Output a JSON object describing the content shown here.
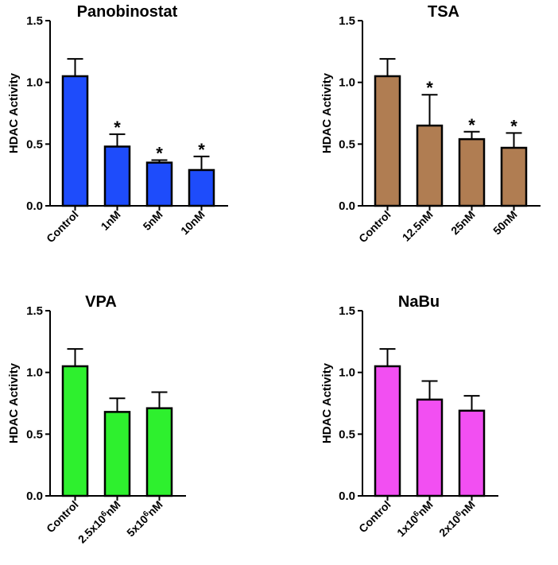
{
  "chart_data": [
    {
      "type": "bar",
      "title": "Panobinostat",
      "xlabel": "",
      "ylabel": "HDAC Activity",
      "ylim": [
        0,
        1.5
      ],
      "yticks": [
        "0.0",
        "0.5",
        "1.0",
        "1.5"
      ],
      "bar_color": "#1e4cfb",
      "categories": [
        {
          "label": "Control",
          "base": "Control",
          "sup": "",
          "unit": ""
        },
        {
          "label": "1nM",
          "base": "1nM",
          "sup": "",
          "unit": ""
        },
        {
          "label": "5nM",
          "base": "5nM",
          "sup": "",
          "unit": ""
        },
        {
          "label": "10nM",
          "base": "10nM",
          "sup": "",
          "unit": ""
        }
      ],
      "values": [
        1.05,
        0.48,
        0.35,
        0.29
      ],
      "errors": [
        0.14,
        0.1,
        0.02,
        0.11
      ],
      "significance": [
        "",
        "*",
        "*",
        "*"
      ]
    },
    {
      "type": "bar",
      "title": "TSA",
      "xlabel": "",
      "ylabel": "HDAC Activity",
      "ylim": [
        0,
        1.5
      ],
      "yticks": [
        "0.0",
        "0.5",
        "1.0",
        "1.5"
      ],
      "bar_color": "#b07d52",
      "categories": [
        {
          "label": "Control",
          "base": "Control",
          "sup": "",
          "unit": ""
        },
        {
          "label": "12.5nM",
          "base": "12.5nM",
          "sup": "",
          "unit": ""
        },
        {
          "label": "25nM",
          "base": "25nM",
          "sup": "",
          "unit": ""
        },
        {
          "label": "50nM",
          "base": "50nM",
          "sup": "",
          "unit": ""
        }
      ],
      "values": [
        1.05,
        0.65,
        0.54,
        0.47
      ],
      "errors": [
        0.14,
        0.25,
        0.06,
        0.12
      ],
      "significance": [
        "",
        "*",
        "*",
        "*"
      ]
    },
    {
      "type": "bar",
      "title": "VPA",
      "xlabel": "",
      "ylabel": "HDAC Activity",
      "ylim": [
        0,
        1.5
      ],
      "yticks": [
        "0.0",
        "0.5",
        "1.0",
        "1.5"
      ],
      "bar_color": "#2ef02e",
      "categories": [
        {
          "label": "Control",
          "base": "Control",
          "sup": "",
          "unit": ""
        },
        {
          "label": "2.5x10⁶nM",
          "base": "2.5x10",
          "sup": "6",
          "unit": "nM"
        },
        {
          "label": "5x10⁶nM",
          "base": "5x10",
          "sup": "6",
          "unit": "nM"
        }
      ],
      "values": [
        1.05,
        0.68,
        0.71
      ],
      "errors": [
        0.14,
        0.11,
        0.13
      ],
      "significance": [
        "",
        "",
        ""
      ]
    },
    {
      "type": "bar",
      "title": "NaBu",
      "xlabel": "",
      "ylabel": "HDAC Activity",
      "ylim": [
        0,
        1.5
      ],
      "yticks": [
        "0.0",
        "0.5",
        "1.0",
        "1.5"
      ],
      "bar_color": "#f24ff2",
      "categories": [
        {
          "label": "Control",
          "base": "Control",
          "sup": "",
          "unit": ""
        },
        {
          "label": "1x10⁶nM",
          "base": "1x10",
          "sup": "6",
          "unit": "nM"
        },
        {
          "label": "2x10⁶nM",
          "base": "2x10",
          "sup": "6",
          "unit": "nM"
        }
      ],
      "values": [
        1.05,
        0.78,
        0.69
      ],
      "errors": [
        0.14,
        0.15,
        0.12
      ],
      "significance": [
        "",
        "",
        ""
      ]
    }
  ]
}
